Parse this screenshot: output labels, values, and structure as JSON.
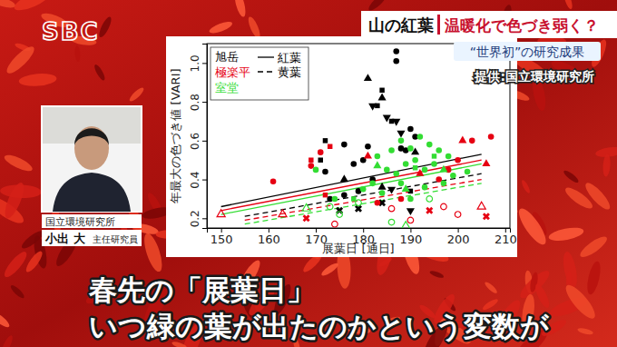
{
  "chart_data": {
    "type": "scatter",
    "x_label": "展葉日 [通日]",
    "y_label": "年最大の色づき値 [VARI]",
    "xlim": [
      147,
      211
    ],
    "ylim": [
      0.15,
      1.1
    ],
    "xticks": [
      150,
      160,
      170,
      180,
      190,
      200,
      210
    ],
    "yticks": [
      0.2,
      0.4,
      0.6,
      0.8,
      {
        "value": 1,
        "label": "1.0"
      }
    ],
    "grid": false,
    "legend": "upper left",
    "line_styles": [
      {
        "name": "紅葉",
        "line_style": "solid"
      },
      {
        "name": "黄葉",
        "line_style": "dashed"
      }
    ],
    "series": [
      {
        "name": "旭岳",
        "type": "line",
        "color": "#000000",
        "line_style": "solid",
        "x": [
          150,
          205
        ],
        "values": [
          0.26,
          0.53
        ]
      },
      {
        "name": "極楽平",
        "type": "line",
        "color": "#e60012",
        "line_style": "solid",
        "x": [
          150,
          205
        ],
        "values": [
          0.24,
          0.5
        ]
      },
      {
        "name": "室堂",
        "type": "line",
        "color": "#33dd33",
        "line_style": "solid",
        "x": [
          150,
          205
        ],
        "values": [
          0.22,
          0.48
        ]
      },
      {
        "name": "旭岳",
        "type": "line",
        "color": "#000000",
        "line_style": "dashed",
        "x": [
          155,
          205
        ],
        "values": [
          0.21,
          0.43
        ]
      },
      {
        "name": "極楽平",
        "type": "line",
        "color": "#e60012",
        "line_style": "dashed",
        "x": [
          155,
          205
        ],
        "values": [
          0.19,
          0.4
        ]
      },
      {
        "name": "室堂",
        "type": "line",
        "color": "#33dd33",
        "line_style": "dashed",
        "x": [
          155,
          205
        ],
        "values": [
          0.17,
          0.38
        ]
      },
      {
        "name": "旭岳",
        "type": "scatter",
        "color": "#000000",
        "marker": "circle",
        "x": [
          187,
          187,
          176,
          181,
          180,
          178,
          188,
          190,
          191,
          189,
          172,
          182,
          176,
          179,
          173
        ],
        "values": [
          1.06,
          1.01,
          0.58,
          0.57,
          0.5,
          0.48,
          0.56,
          0.66,
          0.62,
          0.55,
          0.44,
          0.4,
          0.32,
          0.34,
          0.3
        ]
      },
      {
        "name": "旭岳",
        "type": "scatter",
        "color": "#000000",
        "marker": "square",
        "x": [
          172,
          183,
          184,
          171,
          190,
          186
        ],
        "values": [
          0.6,
          0.78,
          0.86,
          0.5,
          0.34,
          0.7
        ]
      },
      {
        "name": "旭岳",
        "type": "scatter",
        "color": "#000000",
        "marker": "triangle",
        "x": [
          181,
          184,
          191,
          176,
          184
        ],
        "values": [
          0.92,
          0.82,
          0.54,
          0.4,
          0.36
        ]
      },
      {
        "name": "旭岳",
        "type": "scatter",
        "color": "#000000",
        "marker": "triangle-down",
        "x": [
          185,
          187,
          188,
          182,
          186,
          190
        ],
        "values": [
          0.72,
          0.7,
          0.64,
          0.78,
          0.35,
          0.24
        ]
      },
      {
        "name": "旭岳",
        "type": "scatter",
        "color": "#000000",
        "marker": "cross",
        "x": [
          175,
          184,
          179
        ],
        "values": [
          0.24,
          0.28,
          0.25
        ]
      },
      {
        "name": "極楽平",
        "type": "scatter",
        "color": "#e60012",
        "marker": "circle",
        "x": [
          161,
          169,
          171,
          203,
          207,
          198,
          200,
          196,
          183,
          188
        ],
        "values": [
          0.39,
          0.47,
          0.54,
          0.6,
          0.62,
          0.45,
          0.5,
          0.4,
          0.28,
          0.3
        ]
      },
      {
        "name": "極楽平",
        "type": "scatter",
        "color": "#e60012",
        "marker": "square",
        "x": [
          169,
          173,
          172
        ],
        "values": [
          0.5,
          0.57,
          0.32
        ]
      },
      {
        "name": "極楽平",
        "type": "scatter",
        "color": "#e60012",
        "marker": "triangle",
        "x": [
          201,
          206,
          181,
          192
        ],
        "values": [
          0.6,
          0.48,
          0.52,
          0.43
        ]
      },
      {
        "name": "極楽平",
        "type": "scatter",
        "color": "#e60012",
        "marker": "triangle-open",
        "x": [
          150,
          163,
          205
        ],
        "values": [
          0.22,
          0.22,
          0.26
        ]
      },
      {
        "name": "極楽平",
        "type": "scatter",
        "color": "#e60012",
        "marker": "circle-open",
        "x": [
          174,
          190,
          200,
          186,
          197
        ],
        "values": [
          0.17,
          0.19,
          0.22,
          0.25,
          0.26
        ]
      },
      {
        "name": "極楽平",
        "type": "scatter",
        "color": "#e60012",
        "marker": "cross",
        "x": [
          168,
          206,
          194
        ],
        "values": [
          0.2,
          0.21,
          0.24
        ]
      },
      {
        "name": "室堂",
        "type": "scatter",
        "color": "#33dd33",
        "marker": "circle",
        "x": [
          183,
          186,
          188,
          190,
          192,
          194,
          196,
          198,
          189,
          191,
          193,
          195,
          185,
          187,
          199,
          202,
          180,
          182,
          184,
          190,
          193,
          197,
          170,
          174,
          188
        ],
        "values": [
          0.52,
          0.55,
          0.6,
          0.56,
          0.62,
          0.58,
          0.55,
          0.52,
          0.48,
          0.5,
          0.45,
          0.48,
          0.45,
          0.43,
          0.42,
          0.44,
          0.35,
          0.38,
          0.33,
          0.3,
          0.36,
          0.38,
          0.45,
          0.3,
          0.38
        ]
      },
      {
        "name": "室堂",
        "type": "scatter",
        "color": "#33dd33",
        "marker": "square",
        "x": [
          191,
          195,
          178
        ],
        "values": [
          0.46,
          0.52,
          0.3
        ]
      },
      {
        "name": "室堂",
        "type": "scatter",
        "color": "#33dd33",
        "marker": "triangle",
        "x": [
          183,
          197,
          189
        ],
        "values": [
          0.47,
          0.45,
          0.35
        ]
      },
      {
        "name": "室堂",
        "type": "scatter",
        "color": "#33dd33",
        "marker": "circle-open",
        "x": [
          175,
          186,
          179,
          194,
          173
        ],
        "values": [
          0.22,
          0.18,
          0.28,
          0.3,
          0.26
        ]
      },
      {
        "name": "室堂",
        "type": "scatter",
        "color": "#33dd33",
        "marker": "triangle-open",
        "x": [
          189,
          168
        ],
        "values": [
          0.16,
          0.25
        ]
      }
    ]
  },
  "broadcast": {
    "logo": "SBC",
    "headline": "山の紅葉",
    "headline_sub": "温暖化で色づき弱く？",
    "tag": "“世界初”の研究成果",
    "credit": "提供:国立環境研究所",
    "speaker": {
      "org": "国立環境研究所",
      "name": "小出 大",
      "role": "主任研究員"
    },
    "caption": [
      "春先の「展葉日」",
      "いつ緑の葉が出たのかという変数が"
    ]
  }
}
